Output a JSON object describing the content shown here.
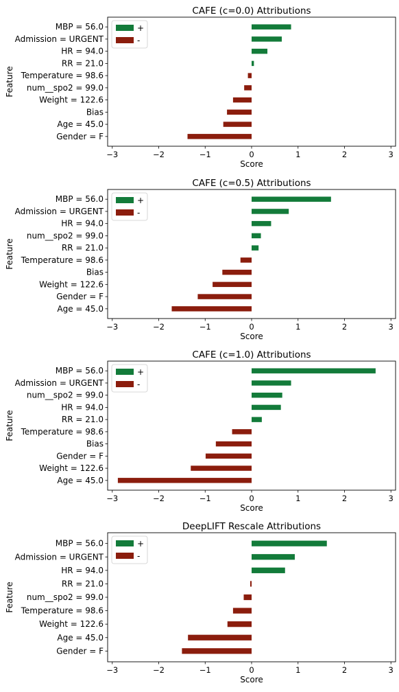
{
  "colors": {
    "positive": "#137b3a",
    "negative": "#8b1d0d"
  },
  "legend": {
    "placement": "top-left",
    "entries": [
      "+",
      "-"
    ]
  },
  "chart_data": [
    {
      "type": "bar",
      "orientation": "horizontal",
      "title": "CAFE (c=0.0) Attributions",
      "xlabel": "Score",
      "ylabel": "Feature",
      "xlim": [
        -3.1,
        3.1
      ],
      "xticks": [
        -3,
        -2,
        -1,
        0,
        1,
        2,
        3
      ],
      "xtick_labels": [
        "−3",
        "−2",
        "−1",
        "0",
        "1",
        "2",
        "3"
      ],
      "categories": [
        "MBP = 56.0",
        "Admission = URGENT",
        "HR = 94.0",
        "RR = 21.0",
        "Temperature = 98.6",
        "num__spo2 = 99.0",
        "Weight = 122.6",
        "Bias",
        "Age = 45.0",
        "Gender = F"
      ],
      "values": [
        0.85,
        0.65,
        0.34,
        0.05,
        -0.08,
        -0.16,
        -0.4,
        -0.53,
        -0.61,
        -1.38
      ]
    },
    {
      "type": "bar",
      "orientation": "horizontal",
      "title": "CAFE (c=0.5) Attributions",
      "xlabel": "Score",
      "ylabel": "Feature",
      "xlim": [
        -3.1,
        3.1
      ],
      "xticks": [
        -3,
        -2,
        -1,
        0,
        1,
        2,
        3
      ],
      "xtick_labels": [
        "−3",
        "−2",
        "−1",
        "0",
        "1",
        "2",
        "3"
      ],
      "categories": [
        "MBP = 56.0",
        "Admission = URGENT",
        "HR = 94.0",
        "num__spo2 = 99.0",
        "RR = 21.0",
        "Temperature = 98.6",
        "Bias",
        "Weight = 122.6",
        "Gender = F",
        "Age = 45.0"
      ],
      "values": [
        1.71,
        0.8,
        0.42,
        0.2,
        0.15,
        -0.24,
        -0.63,
        -0.84,
        -1.16,
        -1.72
      ]
    },
    {
      "type": "bar",
      "orientation": "horizontal",
      "title": "CAFE (c=1.0) Attributions",
      "xlabel": "Score",
      "ylabel": "Feature",
      "xlim": [
        -3.1,
        3.1
      ],
      "xticks": [
        -3,
        -2,
        -1,
        0,
        1,
        2,
        3
      ],
      "xtick_labels": [
        "−3",
        "−2",
        "−1",
        "0",
        "1",
        "2",
        "3"
      ],
      "categories": [
        "MBP = 56.0",
        "Admission = URGENT",
        "num__spo2 = 99.0",
        "HR = 94.0",
        "RR = 21.0",
        "Temperature = 98.6",
        "Bias",
        "Gender = F",
        "Weight = 122.6",
        "Age = 45.0"
      ],
      "values": [
        2.67,
        0.85,
        0.66,
        0.63,
        0.22,
        -0.42,
        -0.77,
        -0.99,
        -1.31,
        -2.88
      ]
    },
    {
      "type": "bar",
      "orientation": "horizontal",
      "title": "DeepLIFT Rescale Attributions",
      "xlabel": "Score",
      "ylabel": "Feature",
      "xlim": [
        -3.1,
        3.1
      ],
      "xticks": [
        -3,
        -2,
        -1,
        0,
        1,
        2,
        3
      ],
      "xtick_labels": [
        "−3",
        "−2",
        "−1",
        "0",
        "1",
        "2",
        "3"
      ],
      "categories": [
        "MBP = 56.0",
        "Admission = URGENT",
        "HR = 94.0",
        "RR = 21.0",
        "num__spo2 = 99.0",
        "Temperature = 98.6",
        "Weight = 122.6",
        "Age = 45.0",
        "Gender = F"
      ],
      "values": [
        1.62,
        0.93,
        0.72,
        -0.03,
        -0.17,
        -0.4,
        -0.52,
        -1.37,
        -1.5
      ]
    }
  ]
}
